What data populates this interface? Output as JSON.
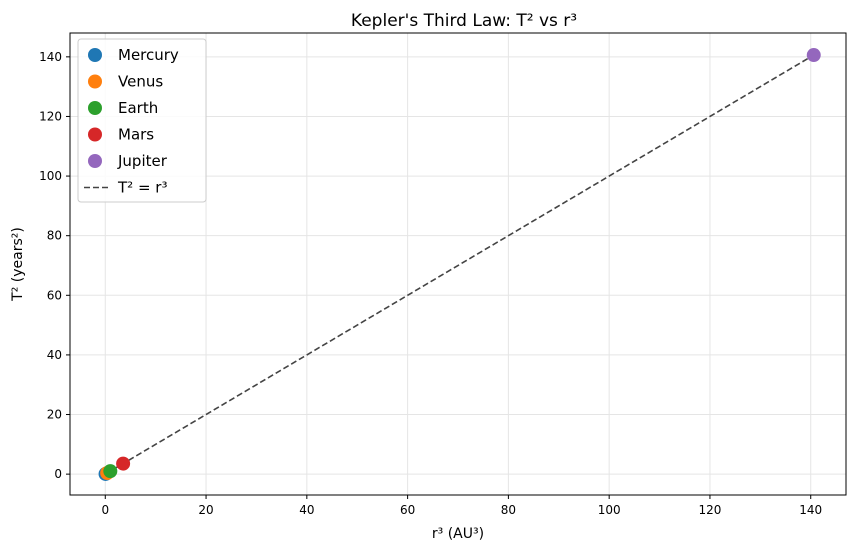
{
  "chart_data": {
    "type": "scatter",
    "title": "Kepler's Third Law: T² vs r³",
    "xlabel": "r³ (AU³)",
    "ylabel": "T² (years²)",
    "xlim": [
      -7,
      147
    ],
    "ylim": [
      -7,
      148
    ],
    "xticks": [
      0,
      20,
      40,
      60,
      80,
      100,
      120,
      140
    ],
    "yticks": [
      0,
      20,
      40,
      60,
      80,
      100,
      120,
      140
    ],
    "grid": true,
    "legend_position": "top-left",
    "series": [
      {
        "name": "Mercury",
        "color": "#1f77b4",
        "x": 0.058,
        "y": 0.058
      },
      {
        "name": "Venus",
        "color": "#ff7f0e",
        "x": 0.378,
        "y": 0.378
      },
      {
        "name": "Earth",
        "color": "#2ca02c",
        "x": 1.0,
        "y": 1.0
      },
      {
        "name": "Mars",
        "color": "#d62728",
        "x": 3.54,
        "y": 3.54
      },
      {
        "name": "Jupiter",
        "color": "#9467bd",
        "x": 140.6,
        "y": 140.6
      }
    ],
    "reference_line": {
      "label": "T² = r³",
      "color": "#444444",
      "x": [
        0,
        140.6
      ],
      "y": [
        0,
        140.6
      ]
    }
  }
}
